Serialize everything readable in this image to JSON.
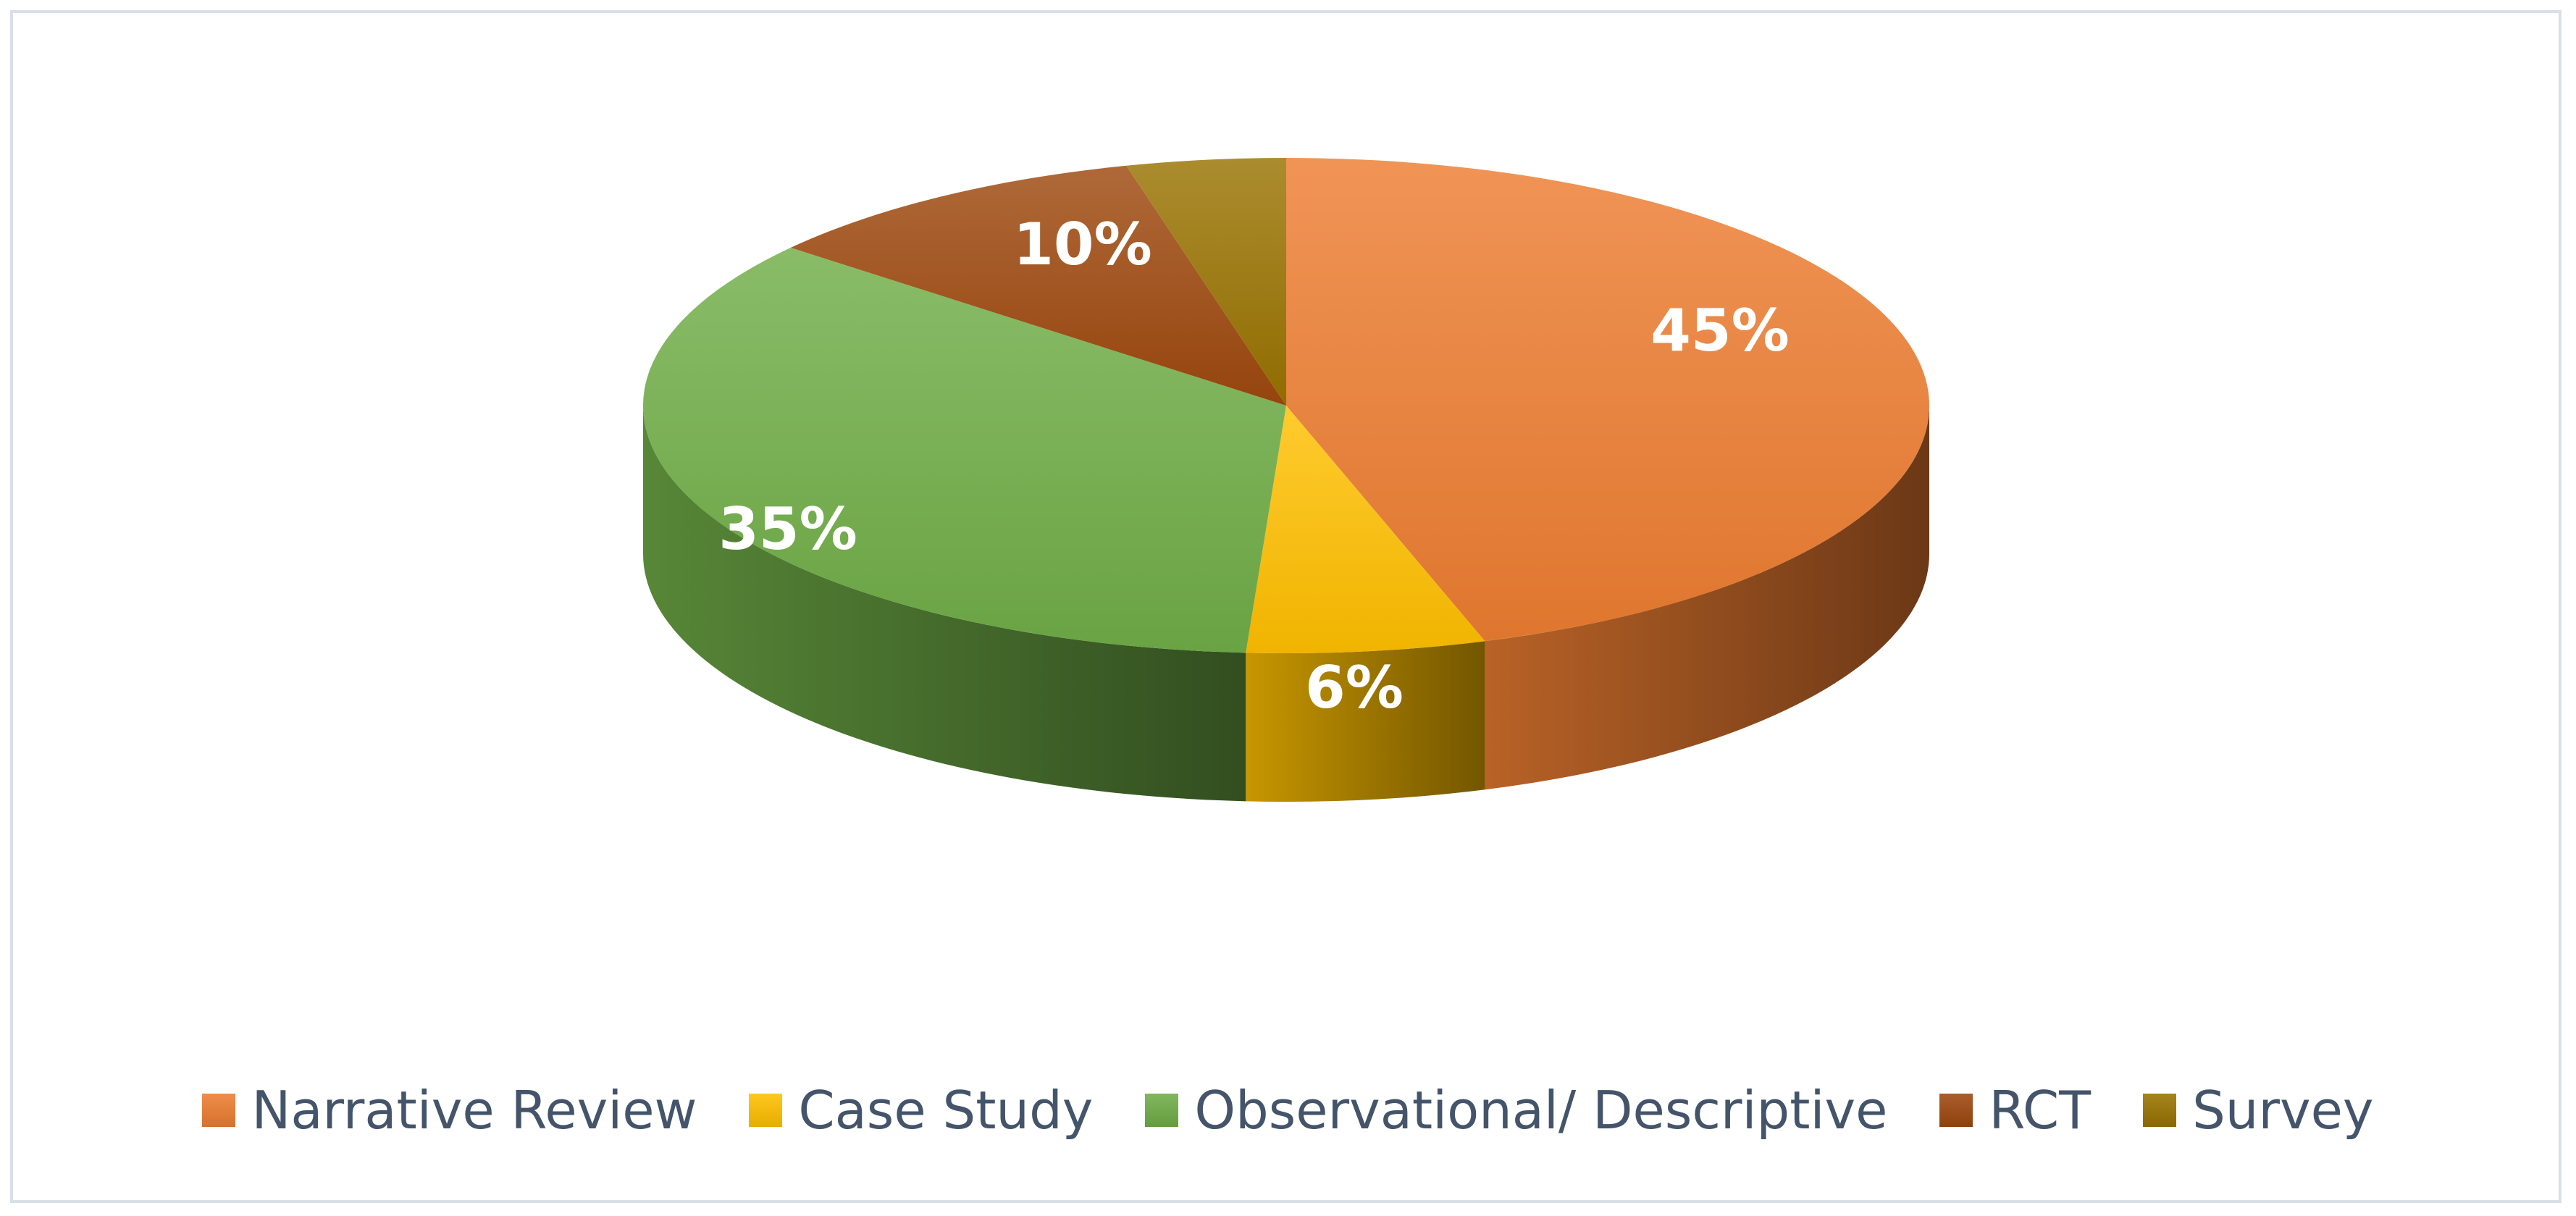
{
  "chart_data": {
    "type": "pie",
    "style": "3d",
    "title": "",
    "slices": [
      {
        "label": "Narrative Review",
        "value": 45,
        "display": "45%",
        "color": "#ed7d31"
      },
      {
        "label": "Case Study",
        "value": 6,
        "display": "6%",
        "color": "#ffc000"
      },
      {
        "label": "Observational/ Descriptive",
        "value": 35,
        "display": "35%",
        "color": "#70ad47"
      },
      {
        "label": "RCT",
        "value": 10,
        "display": "10%",
        "color": "#9e480e"
      },
      {
        "label": "Survey",
        "value": 4,
        "display": "",
        "color": "#997300"
      }
    ],
    "legend_position": "bottom",
    "data_labels": "percent"
  }
}
